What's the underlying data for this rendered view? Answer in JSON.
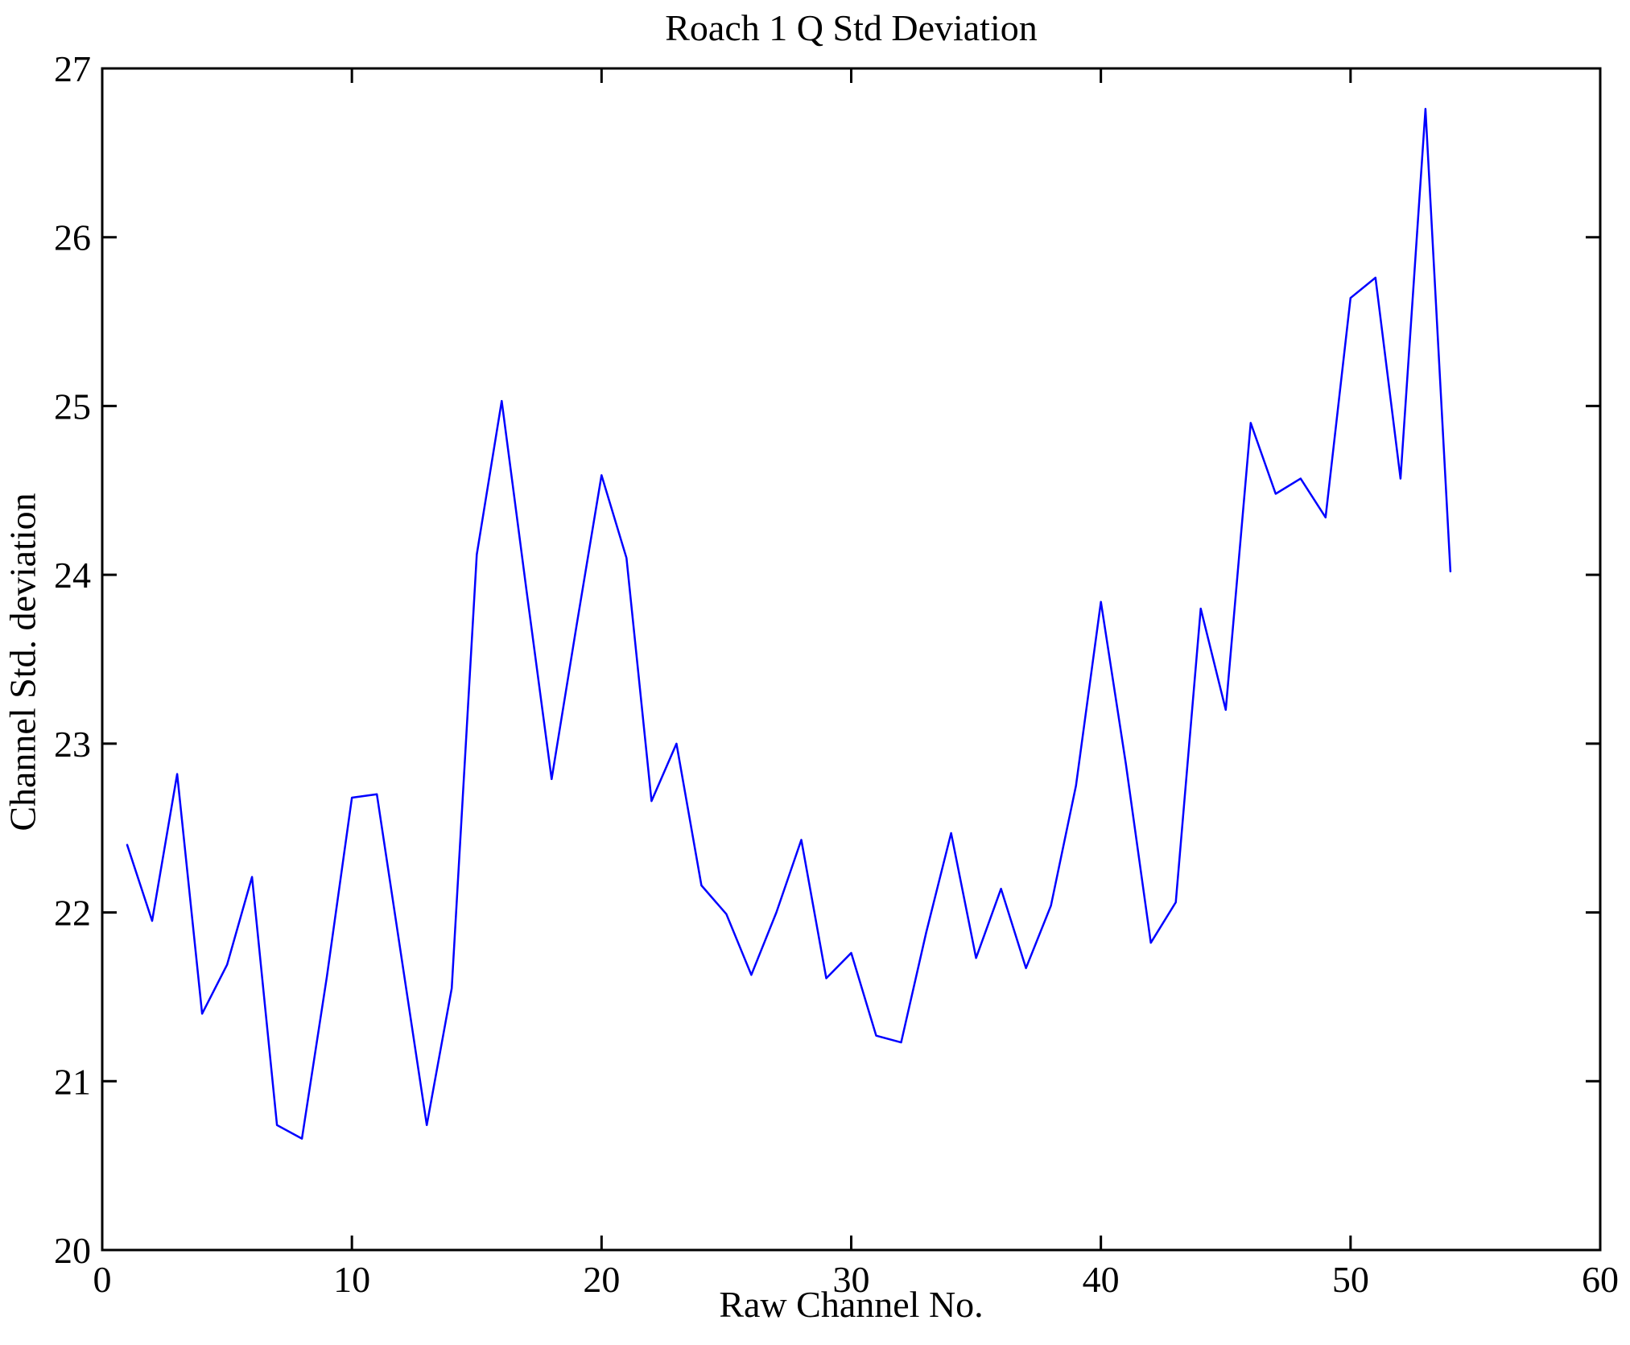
{
  "figure": {
    "title": "Roach 1 Q Std Deviation",
    "xlabel": "Raw Channel No.",
    "ylabel": "Channel Std. deviation"
  },
  "chart_data": {
    "type": "line",
    "title": "Roach 1 Q Std Deviation",
    "xlabel": "Raw Channel No.",
    "ylabel": "Channel Std. deviation",
    "xlim": [
      0,
      60
    ],
    "ylim": [
      20,
      27
    ],
    "xticks": [
      0,
      10,
      20,
      30,
      40,
      50,
      60
    ],
    "yticks": [
      20,
      21,
      22,
      23,
      24,
      25,
      26,
      27
    ],
    "grid": false,
    "legend_position": "none",
    "line_color": "#0000FF",
    "axis_color": "#000000",
    "background_color": "#FFFFFF",
    "x": [
      1,
      2,
      3,
      4,
      5,
      6,
      7,
      8,
      9,
      10,
      11,
      12,
      13,
      14,
      15,
      16,
      17,
      18,
      19,
      20,
      21,
      22,
      23,
      24,
      25,
      26,
      27,
      28,
      29,
      30,
      31,
      32,
      33,
      34,
      35,
      36,
      37,
      38,
      39,
      40,
      41,
      42,
      43,
      44,
      45,
      46,
      47,
      48,
      49,
      50,
      51,
      52,
      53,
      54
    ],
    "values": [
      22.4,
      21.95,
      22.82,
      21.4,
      21.69,
      22.21,
      20.74,
      20.66,
      21.62,
      22.68,
      22.7,
      21.72,
      20.74,
      21.55,
      24.12,
      25.03,
      23.9,
      22.79,
      23.7,
      24.59,
      24.1,
      22.66,
      23.0,
      22.16,
      21.99,
      21.63,
      22.0,
      22.43,
      21.61,
      21.76,
      21.27,
      21.23,
      21.88,
      22.47,
      21.73,
      22.14,
      21.67,
      22.04,
      22.75,
      23.84,
      22.88,
      21.82,
      22.06,
      23.8,
      23.2,
      24.9,
      24.48,
      24.57,
      24.34,
      25.64,
      25.76,
      24.57,
      26.76,
      24.02
    ]
  }
}
